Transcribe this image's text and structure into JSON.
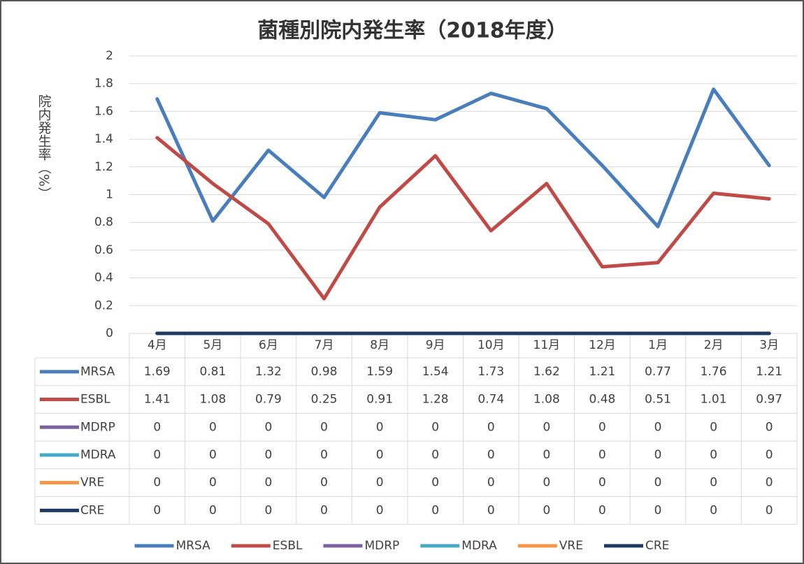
{
  "chart_data": {
    "type": "line",
    "title": "菌種別院内発生率（2018年度）",
    "y_label": "院内発生率（%）",
    "categories": [
      "4月",
      "5月",
      "6月",
      "7月",
      "8月",
      "9月",
      "10月",
      "11月",
      "12月",
      "1月",
      "2月",
      "3月"
    ],
    "series": [
      {
        "name": "MRSA",
        "color": "#4a7ebb",
        "values": [
          1.69,
          0.81,
          1.32,
          0.98,
          1.59,
          1.54,
          1.73,
          1.62,
          1.21,
          0.77,
          1.76,
          1.21
        ]
      },
      {
        "name": "ESBL",
        "color": "#be4b48",
        "values": [
          1.41,
          1.08,
          0.79,
          0.25,
          0.91,
          1.28,
          0.74,
          1.08,
          0.48,
          0.51,
          1.01,
          0.97
        ]
      },
      {
        "name": "MDRP",
        "color": "#7d60a0",
        "values": [
          0,
          0,
          0,
          0,
          0,
          0,
          0,
          0,
          0,
          0,
          0,
          0
        ]
      },
      {
        "name": "MDRA",
        "color": "#46aac5",
        "values": [
          0,
          0,
          0,
          0,
          0,
          0,
          0,
          0,
          0,
          0,
          0,
          0
        ]
      },
      {
        "name": "VRE",
        "color": "#f79646",
        "values": [
          0,
          0,
          0,
          0,
          0,
          0,
          0,
          0,
          0,
          0,
          0,
          0
        ]
      },
      {
        "name": "CRE",
        "color": "#1f3a60",
        "values": [
          0,
          0,
          0,
          0,
          0,
          0,
          0,
          0,
          0,
          0,
          0,
          0
        ]
      }
    ],
    "ylim": [
      0,
      2
    ],
    "yticks": [
      0,
      0.2,
      0.4,
      0.6,
      0.8,
      1,
      1.2,
      1.4,
      1.6,
      1.8,
      2
    ],
    "grid": true,
    "legend": "bottom",
    "data_table": true
  }
}
